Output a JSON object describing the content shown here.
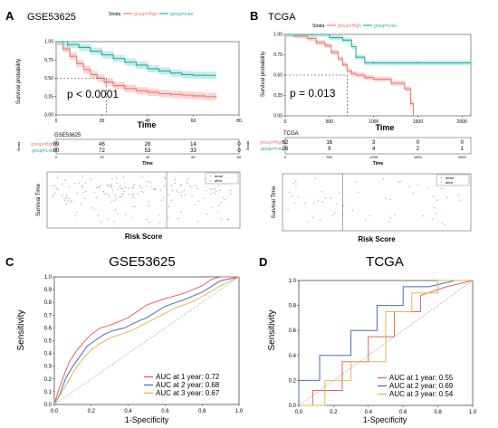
{
  "colors": {
    "high": "#f07870",
    "low": "#20b2aa",
    "high_band": "#f6b8b2",
    "low_band": "#9edfdc",
    "roc1": "#e8605a",
    "roc2": "#4a6fb5",
    "roc3": "#e6b84a",
    "diag": "#9a9a9a",
    "dash": "#333333"
  },
  "panels": {
    "A": {
      "letter": "A",
      "title": "GSE53625",
      "strata_title": "Strata",
      "legend_high": "group=High",
      "legend_low": "group=Low",
      "ylabel": "Survival probability",
      "xlabel": "Time",
      "pvalue": "p < 0.0001",
      "risk_title": "GSE53625",
      "risk_strata": "Strata",
      "risk_xlabel": "Time",
      "risk_rows": [
        {
          "label": "group=High",
          "values": [
            "89",
            "46",
            "28",
            "14",
            "0"
          ]
        },
        {
          "label": "group=Low",
          "values": [
            "90",
            "72",
            "53",
            "33",
            "0"
          ]
        }
      ],
      "risk_ticks": [
        "0",
        "20",
        "40",
        "60",
        "80"
      ],
      "scatter_ylabel": "Survival Time",
      "scatter_xlabel": "Risk Score",
      "scatter_legend": [
        "dead",
        "alive"
      ]
    },
    "B": {
      "letter": "B",
      "title": "TCGA",
      "strata_title": "Strata",
      "legend_high": "group=High",
      "legend_low": "group=Low",
      "ylabel": "Survival probability",
      "xlabel": "Time",
      "pvalue": "p = 0.013",
      "risk_title": "TCGA",
      "risk_strata": "Strata",
      "risk_xlabel": "Time",
      "risk_rows": [
        {
          "label": "group=High",
          "values": [
            "62",
            "16",
            "3",
            "0",
            "0"
          ]
        },
        {
          "label": "group=Low",
          "values": [
            "26",
            "9",
            "4",
            "2",
            "1"
          ]
        }
      ],
      "risk_ticks": [
        "0",
        "500",
        "1000",
        "1500",
        "2000"
      ],
      "scatter_ylabel": "Survival Time",
      "scatter_xlabel": "Risk Score",
      "scatter_legend": [
        "dead",
        "alive"
      ]
    },
    "C": {
      "letter": "C",
      "title": "GSE53625",
      "xlabel": "1-Specificity",
      "ylabel": "Sensitivity",
      "legend": [
        "AUC at 1 year: 0.72",
        "AUC at 2 year: 0.68",
        "AUC at 3 year: 0.67"
      ]
    },
    "D": {
      "letter": "D",
      "title": "TCGA",
      "xlabel": "1-Specificity",
      "ylabel": "Sensitivity",
      "legend": [
        "AUC at 1 year: 0.55",
        "AUC at 2 year: 0.69",
        "AUC at 3 year: 0.54"
      ]
    }
  },
  "chart_data": [
    {
      "panel": "A",
      "type": "line",
      "title": "GSE53625",
      "xlabel": "Time",
      "ylabel": "Survival probability",
      "xlim": [
        0,
        80
      ],
      "ylim": [
        0,
        1
      ],
      "xticks": [
        "0",
        "20",
        "40",
        "60",
        "80"
      ],
      "yticks": [
        "0.00",
        "0.25",
        "0.50",
        "0.75",
        "1.00"
      ],
      "series": [
        {
          "name": "group=High",
          "x": [
            0,
            3,
            6,
            9,
            12,
            15,
            18,
            21,
            25,
            30,
            35,
            40,
            45,
            50,
            55,
            60,
            65,
            70
          ],
          "y": [
            1.0,
            0.9,
            0.8,
            0.7,
            0.62,
            0.55,
            0.5,
            0.45,
            0.4,
            0.36,
            0.33,
            0.31,
            0.29,
            0.28,
            0.27,
            0.26,
            0.25,
            0.25
          ]
        },
        {
          "name": "group=Low",
          "x": [
            0,
            5,
            10,
            15,
            20,
            25,
            30,
            35,
            40,
            45,
            50,
            55,
            60,
            65,
            70
          ],
          "y": [
            1.0,
            0.96,
            0.92,
            0.87,
            0.82,
            0.77,
            0.72,
            0.68,
            0.63,
            0.6,
            0.57,
            0.55,
            0.54,
            0.54,
            0.54
          ]
        }
      ],
      "annotation": "p < 0.0001",
      "median_survival": 22
    },
    {
      "panel": "B",
      "type": "line",
      "title": "TCGA",
      "xlabel": "Time",
      "ylabel": "Survival probability",
      "xlim": [
        0,
        2100
      ],
      "ylim": [
        0,
        1
      ],
      "xticks": [
        "0",
        "500",
        "1000",
        "1500",
        "2000"
      ],
      "yticks": [
        "0.00",
        "0.25",
        "0.50",
        "0.75",
        "1.00"
      ],
      "series": [
        {
          "name": "group=High",
          "x": [
            0,
            100,
            250,
            350,
            450,
            520,
            600,
            650,
            700,
            750,
            800,
            900,
            1000,
            1200,
            1350,
            1420,
            1450
          ],
          "y": [
            1.0,
            0.98,
            0.95,
            0.9,
            0.86,
            0.78,
            0.7,
            0.63,
            0.55,
            0.52,
            0.5,
            0.47,
            0.45,
            0.4,
            0.33,
            0.15,
            0.0
          ]
        },
        {
          "name": "group=Low",
          "x": [
            0,
            300,
            500,
            650,
            750,
            800,
            900,
            1000,
            1200,
            1500,
            1800,
            2100
          ],
          "y": [
            1.0,
            1.0,
            0.96,
            0.93,
            0.85,
            0.72,
            0.65,
            0.65,
            0.65,
            0.65,
            0.65,
            0.65
          ]
        }
      ],
      "annotation": "p = 0.013",
      "median_survival": 700
    },
    {
      "panel": "C",
      "type": "line",
      "title": "GSE53625",
      "xlabel": "1-Specificity",
      "ylabel": "Sensitivity",
      "xlim": [
        0,
        1
      ],
      "ylim": [
        0,
        1
      ],
      "xticks": [
        "0.0",
        "0.2",
        "0.4",
        "0.6",
        "0.8",
        "1.0"
      ],
      "yticks": [
        "0.0",
        "0.1",
        "0.2",
        "0.3",
        "0.4",
        "0.5",
        "0.6",
        "0.7",
        "0.8",
        "0.9",
        "1.0"
      ],
      "series": [
        {
          "name": "AUC at 1 year: 0.72",
          "x": [
            0,
            0.02,
            0.05,
            0.08,
            0.12,
            0.16,
            0.2,
            0.25,
            0.3,
            0.35,
            0.4,
            0.45,
            0.5,
            0.6,
            0.7,
            0.8,
            0.85,
            0.9,
            0.95,
            1.0
          ],
          "y": [
            0,
            0.1,
            0.22,
            0.33,
            0.42,
            0.49,
            0.55,
            0.6,
            0.62,
            0.65,
            0.68,
            0.73,
            0.78,
            0.83,
            0.87,
            0.93,
            0.98,
            1.0,
            1.0,
            1.0
          ]
        },
        {
          "name": "AUC at 2 year: 0.68",
          "x": [
            0,
            0.03,
            0.06,
            0.1,
            0.14,
            0.18,
            0.22,
            0.27,
            0.32,
            0.38,
            0.45,
            0.5,
            0.6,
            0.7,
            0.8,
            0.9,
            1.0
          ],
          "y": [
            0,
            0.08,
            0.2,
            0.3,
            0.38,
            0.46,
            0.5,
            0.55,
            0.58,
            0.6,
            0.65,
            0.68,
            0.77,
            0.82,
            0.88,
            0.97,
            1.0
          ]
        },
        {
          "name": "AUC at 3 year: 0.67",
          "x": [
            0,
            0.03,
            0.07,
            0.11,
            0.15,
            0.2,
            0.25,
            0.3,
            0.36,
            0.42,
            0.5,
            0.58,
            0.66,
            0.74,
            0.82,
            0.9,
            1.0
          ],
          "y": [
            0,
            0.07,
            0.17,
            0.27,
            0.35,
            0.43,
            0.48,
            0.52,
            0.55,
            0.58,
            0.64,
            0.7,
            0.76,
            0.8,
            0.86,
            0.93,
            1.0
          ]
        }
      ],
      "reference_line": "diagonal"
    },
    {
      "panel": "D",
      "type": "line",
      "title": "TCGA",
      "xlabel": "1-Specificity",
      "ylabel": "Sensitivity",
      "xlim": [
        0,
        1
      ],
      "ylim": [
        0,
        1
      ],
      "xticks": [
        "0.0",
        "0.2",
        "0.4",
        "0.6",
        "0.8",
        "1.0"
      ],
      "yticks": [
        "0.0",
        "0.2",
        "0.4",
        "0.6",
        "0.8",
        "1.0"
      ],
      "series": [
        {
          "name": "AUC at 1 year: 0.55",
          "x": [
            0,
            0.08,
            0.08,
            0.25,
            0.25,
            0.4,
            0.4,
            0.55,
            0.55,
            0.7,
            0.7,
            0.85,
            1.0
          ],
          "y": [
            0,
            0,
            0.12,
            0.12,
            0.35,
            0.35,
            0.55,
            0.55,
            0.75,
            0.75,
            0.88,
            0.95,
            1.0
          ]
        },
        {
          "name": "AUC at 2 year: 0.69",
          "x": [
            0,
            0,
            0.12,
            0.12,
            0.3,
            0.3,
            0.45,
            0.45,
            0.6,
            0.6,
            0.75,
            0.9,
            1.0
          ],
          "y": [
            0,
            0.2,
            0.2,
            0.4,
            0.4,
            0.6,
            0.6,
            0.8,
            0.8,
            0.95,
            0.95,
            1.0,
            1.0
          ]
        },
        {
          "name": "AUC at 3 year: 0.54",
          "x": [
            0,
            0.15,
            0.15,
            0.3,
            0.3,
            0.5,
            0.5,
            0.65,
            0.65,
            0.8,
            0.8,
            1.0
          ],
          "y": [
            0,
            0,
            0.2,
            0.2,
            0.35,
            0.35,
            0.75,
            0.75,
            0.9,
            0.9,
            1.0,
            1.0
          ]
        }
      ],
      "reference_line": "diagonal"
    }
  ]
}
